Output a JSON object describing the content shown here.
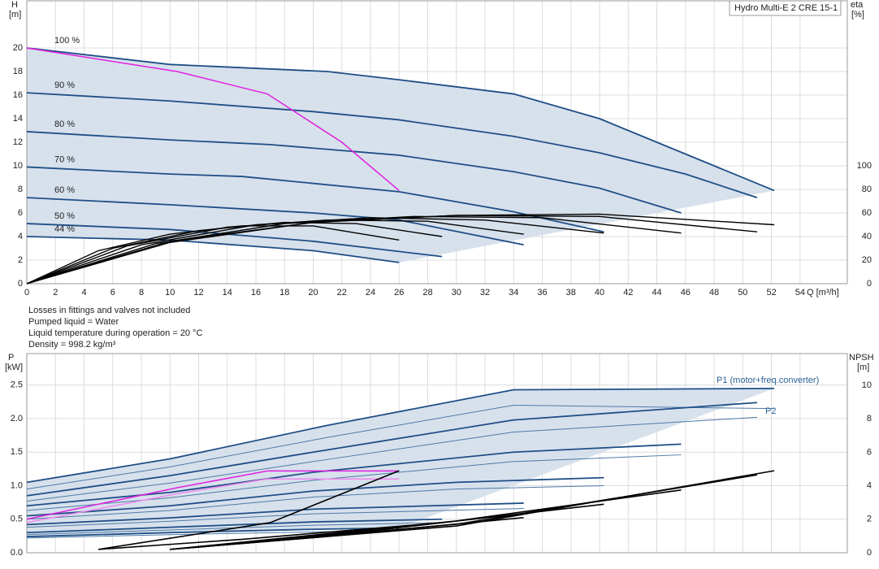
{
  "chart_data": [
    {
      "type": "line",
      "title": "Hydro Multi-E 2 CRE 15-1",
      "ylabel": "H",
      "yunit": "[m]",
      "y2label": "eta",
      "y2unit": "[%]",
      "xlabel": "Q [m³/h]",
      "xlim": [
        0,
        57.3
      ],
      "xticks": [
        0,
        2,
        4,
        6,
        8,
        10,
        12,
        14,
        16,
        18,
        20,
        22,
        24,
        26,
        28,
        30,
        32,
        34,
        36,
        38,
        40,
        42,
        44,
        46,
        48,
        50,
        52,
        54
      ],
      "ylim": [
        0,
        24
      ],
      "yticks": [
        0,
        2,
        4,
        6,
        8,
        10,
        12,
        14,
        16,
        18,
        20
      ],
      "y2lim": [
        0,
        240
      ],
      "y2ticks": [
        0,
        20,
        40,
        60,
        80,
        100
      ],
      "grid": true,
      "area_color": "#d3deea",
      "series": [
        {
          "name": "100 %",
          "color": "#1f4e86",
          "x": [
            0,
            10,
            21,
            26,
            34,
            40,
            46,
            52.2
          ],
          "values": [
            20,
            18.6,
            18,
            17.3,
            16.1,
            14,
            11,
            7.9
          ]
        },
        {
          "name": "90 %",
          "color": "#1f4e86",
          "x": [
            0,
            10,
            20,
            26,
            34,
            40,
            46,
            51
          ],
          "values": [
            16.2,
            15.5,
            14.6,
            13.9,
            12.5,
            11.1,
            9.3,
            7.3
          ]
        },
        {
          "name": "80 %",
          "color": "#1f4e86",
          "x": [
            0,
            10,
            17,
            26,
            34,
            40,
            45.7
          ],
          "values": [
            12.9,
            12.2,
            11.8,
            10.9,
            9.5,
            8.1,
            6
          ]
        },
        {
          "name": "70 %",
          "color": "#1f4e86",
          "x": [
            0,
            10,
            15,
            26,
            34,
            40.3
          ],
          "values": [
            9.9,
            9.3,
            9.1,
            7.8,
            6.1,
            4.4
          ]
        },
        {
          "name": "60 %",
          "color": "#1f4e86",
          "x": [
            0,
            10,
            20,
            26,
            34.7
          ],
          "values": [
            7.3,
            6.7,
            6,
            5.4,
            3.3
          ]
        },
        {
          "name": "50 %",
          "color": "#1f4e86",
          "x": [
            0,
            10,
            20,
            29
          ],
          "values": [
            5.1,
            4.6,
            3.6,
            2.3
          ]
        },
        {
          "name": "44 %",
          "color": "#1f4e86",
          "x": [
            0,
            10,
            20,
            26
          ],
          "values": [
            4,
            3.7,
            2.8,
            1.8
          ]
        }
      ],
      "limit_curves": [
        {
          "color": "#e020e0",
          "x": [
            0,
            10.5,
            16.8,
            22,
            26
          ],
          "values": [
            20,
            18,
            16.1,
            12,
            7.9
          ]
        }
      ],
      "eta_series": [
        {
          "color": "#000000",
          "x": [
            0,
            10,
            20,
            30,
            40,
            52.2
          ],
          "values": [
            0,
            36,
            52,
            58,
            59,
            50
          ]
        },
        {
          "color": "#000000",
          "x": [
            0,
            10,
            20,
            30,
            40,
            51
          ],
          "values": [
            0,
            35,
            52,
            58,
            57,
            44
          ]
        },
        {
          "color": "#000000",
          "x": [
            0,
            9,
            18,
            27,
            36,
            45.7
          ],
          "values": [
            0,
            34,
            51,
            57,
            56,
            43
          ]
        },
        {
          "color": "#000000",
          "x": [
            0,
            8,
            16,
            24,
            32,
            40.3
          ],
          "values": [
            0,
            33,
            50,
            56,
            54,
            43
          ]
        },
        {
          "color": "#000000",
          "x": [
            0,
            7,
            14,
            21,
            28,
            34.7
          ],
          "values": [
            0,
            32,
            48,
            54,
            53,
            42
          ]
        },
        {
          "color": "#000000",
          "x": [
            0,
            6,
            12,
            18,
            23,
            29
          ],
          "values": [
            0,
            30,
            45,
            52,
            51,
            40
          ]
        },
        {
          "color": "#000000",
          "x": [
            0,
            5,
            10,
            15,
            20,
            26
          ],
          "values": [
            0,
            28,
            42,
            49,
            49,
            37
          ]
        }
      ],
      "notes": [
        "Losses in fittings and valves not included",
        "Pumped liquid = Water",
        "Liquid temperature during operation = 20 °C",
        "Density = 998.2 kg/m³"
      ]
    },
    {
      "type": "line",
      "ylabel": "P",
      "yunit": "[kW]",
      "y2label": "NPSH",
      "y2unit": "[m]",
      "xlim": [
        0,
        57.3
      ],
      "xticks": [
        0,
        2,
        4,
        6,
        8,
        10,
        12,
        14,
        16,
        18,
        20,
        22,
        24,
        26,
        28,
        30,
        32,
        34,
        36,
        38,
        40,
        42,
        44,
        46,
        48,
        50,
        52,
        54
      ],
      "ylim": [
        0,
        2.97
      ],
      "yticks": [
        {
          "value": 0,
          "label": "0.0"
        },
        0.5,
        {
          "value": 1,
          "label": "1.0"
        },
        1.5,
        {
          "value": 2,
          "label": "2.0"
        },
        2.5
      ],
      "y2lim": [
        0,
        11.9
      ],
      "y2ticks": [
        0,
        2,
        4,
        6,
        8,
        10
      ],
      "grid": true,
      "area_color": "#d3deea",
      "annotations": [
        "P1 (motor+freq.converter)",
        "P2"
      ],
      "series": [
        {
          "color": "#1f4e86",
          "x": [
            0,
            10,
            21,
            34,
            52.2
          ],
          "values": [
            1.05,
            1.4,
            1.9,
            2.43,
            2.45
          ]
        },
        {
          "color": "#1f4e86",
          "x": [
            0,
            10,
            20,
            34,
            51
          ],
          "values": [
            0.85,
            1.15,
            1.5,
            1.98,
            2.24
          ]
        },
        {
          "color": "#1f4e86",
          "x": [
            0,
            10,
            20,
            34,
            45.7
          ],
          "values": [
            0.7,
            0.9,
            1.2,
            1.5,
            1.62
          ]
        },
        {
          "color": "#1f4e86",
          "x": [
            0,
            10,
            20,
            30,
            40.3
          ],
          "values": [
            0.55,
            0.7,
            0.92,
            1.05,
            1.12
          ]
        },
        {
          "color": "#1f4e86",
          "x": [
            0,
            10,
            20,
            34.7
          ],
          "values": [
            0.42,
            0.52,
            0.65,
            0.74
          ]
        },
        {
          "color": "#1f4e86",
          "x": [
            0,
            10,
            20,
            29
          ],
          "values": [
            0.3,
            0.38,
            0.46,
            0.5
          ]
        },
        {
          "color": "#1f4e86",
          "x": [
            0,
            10,
            20,
            26
          ],
          "values": [
            0.24,
            0.3,
            0.35,
            0.37
          ]
        }
      ],
      "p2_series": [
        {
          "color": "#4d7aa6",
          "x": [
            0,
            10,
            21,
            34,
            52.2
          ],
          "values": [
            0.95,
            1.28,
            1.72,
            2.2,
            2.15
          ]
        },
        {
          "color": "#4d7aa6",
          "x": [
            0,
            10,
            20,
            34,
            51
          ],
          "values": [
            0.77,
            1.04,
            1.36,
            1.8,
            2.02
          ]
        },
        {
          "color": "#4d7aa6",
          "x": [
            0,
            10,
            20,
            34,
            45.7
          ],
          "values": [
            0.63,
            0.82,
            1.08,
            1.36,
            1.46
          ]
        },
        {
          "color": "#4d7aa6",
          "x": [
            0,
            10,
            20,
            30,
            40.3
          ],
          "values": [
            0.5,
            0.63,
            0.83,
            0.95,
            1.0
          ]
        },
        {
          "color": "#4d7aa6",
          "x": [
            0,
            10,
            20,
            34.7
          ],
          "values": [
            0.38,
            0.47,
            0.58,
            0.66
          ]
        },
        {
          "color": "#4d7aa6",
          "x": [
            0,
            10,
            20,
            29
          ],
          "values": [
            0.27,
            0.34,
            0.41,
            0.45
          ]
        },
        {
          "color": "#4d7aa6",
          "x": [
            0,
            10,
            20,
            26
          ],
          "values": [
            0.22,
            0.27,
            0.31,
            0.33
          ]
        }
      ],
      "limit_curves": [
        {
          "color": "#e020e0",
          "x": [
            0,
            10.5,
            16.8,
            26
          ],
          "values": [
            0.5,
            0.97,
            1.22,
            1.22
          ]
        },
        {
          "color": "#ee88ee",
          "x": [
            0,
            10.5,
            16.8,
            26
          ],
          "values": [
            0.45,
            0.88,
            1.1,
            1.1
          ]
        }
      ],
      "npsh_series": [
        {
          "color": "#000000",
          "x": [
            10,
            30,
            52.2
          ],
          "values": [
            0.2,
            1.6,
            4.9
          ]
        },
        {
          "color": "#000000",
          "x": [
            10,
            30,
            51
          ],
          "values": [
            0.2,
            1.7,
            4.65
          ]
        },
        {
          "color": "#000000",
          "x": [
            10,
            30,
            45.7
          ],
          "values": [
            0.2,
            1.9,
            3.75
          ]
        },
        {
          "color": "#000000",
          "x": [
            10,
            25,
            40.3
          ],
          "values": [
            0.2,
            1.4,
            2.9
          ]
        },
        {
          "color": "#000000",
          "x": [
            10,
            20,
            34.7
          ],
          "values": [
            0.2,
            0.9,
            2.1
          ]
        },
        {
          "color": "#000000",
          "x": [
            5,
            15,
            29
          ],
          "values": [
            0.2,
            0.8,
            1.8
          ]
        },
        {
          "color": "#000000",
          "x": [
            5,
            17,
            26
          ],
          "values": [
            0.2,
            1.8,
            4.9
          ]
        }
      ]
    }
  ]
}
